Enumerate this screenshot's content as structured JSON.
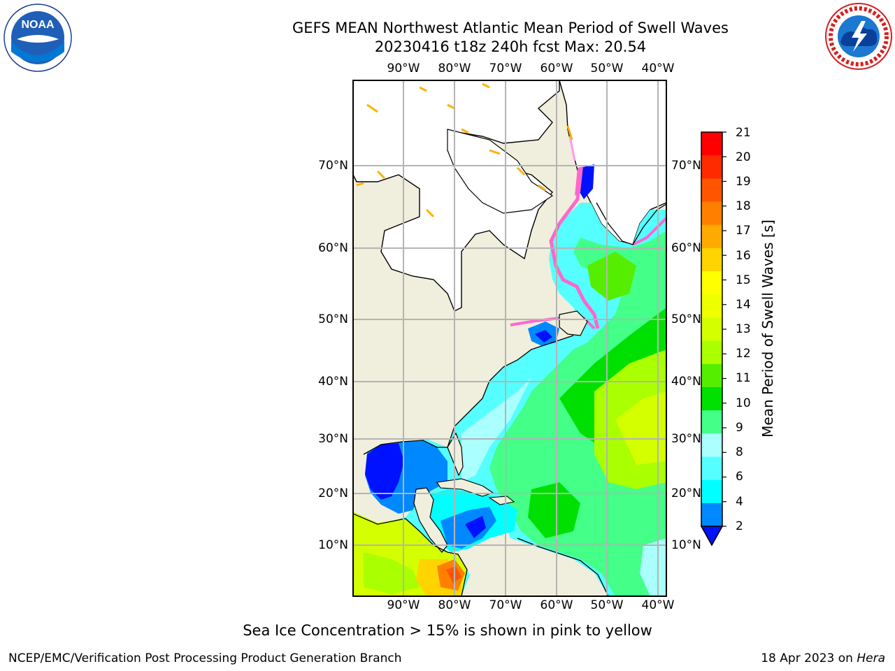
{
  "header": {
    "title_line1": "GEFS MEAN Northwest Atlantic Mean Period of Swell Waves",
    "title_line2": "20230416 t18z 240h fcst   Max: 20.54"
  },
  "logos": {
    "left": "noaa-logo",
    "right": "national-weather-service-logo"
  },
  "map": {
    "lon_ticks": [
      "90°W",
      "80°W",
      "70°W",
      "60°W",
      "50°W",
      "40°W"
    ],
    "lat_ticks": [
      "70°N",
      "60°N",
      "50°N",
      "40°N",
      "30°N",
      "20°N",
      "10°N"
    ],
    "colors": {
      "land": "#f0eedc",
      "ice_sheet": "#ffffff",
      "grid": "#b4b4b4"
    }
  },
  "colorbar": {
    "label": "Mean Period of Swell Waves [s]",
    "ticks": [
      "21",
      "20",
      "19",
      "18",
      "17",
      "16",
      "15",
      "14",
      "13",
      "12",
      "11",
      "10",
      "9",
      "8",
      "6",
      "4",
      "2"
    ],
    "colors": [
      "#ff0000",
      "#ff2a00",
      "#ff5500",
      "#ff8000",
      "#ffaa00",
      "#ffd400",
      "#ffff00",
      "#eeff00",
      "#d4ff00",
      "#aaff00",
      "#55ee00",
      "#00e000",
      "#44ff88",
      "#aaffff",
      "#55ffff",
      "#00ffff",
      "#0088ff",
      "#0011ff"
    ]
  },
  "notes": {
    "sea_ice": "Sea Ice Concentration > 15% is shown in pink to yellow"
  },
  "footer": {
    "left": "NCEP/EMC/Verification Post Processing Product Generation Branch",
    "date": "18 Apr 2023 on ",
    "machine": "Hera"
  }
}
